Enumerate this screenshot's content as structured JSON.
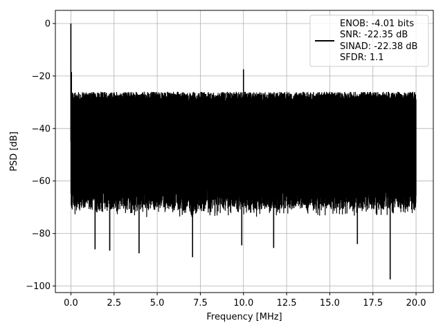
{
  "chart_data": {
    "type": "line",
    "title": "",
    "xlabel": "Frequency [MHz]",
    "ylabel": "PSD [dB]",
    "xlim": [
      -0.9,
      21.0
    ],
    "ylim": [
      -102.5,
      5.0
    ],
    "x_ticks": [
      0.0,
      2.5,
      5.0,
      7.5,
      10.0,
      12.5,
      15.0,
      17.5,
      20.0
    ],
    "x_tick_labels": [
      "0.0",
      "2.5",
      "5.0",
      "7.5",
      "10.0",
      "12.5",
      "15.0",
      "17.5",
      "20.0"
    ],
    "y_ticks": [
      0,
      -20,
      -40,
      -60,
      -80,
      -100
    ],
    "y_tick_labels": [
      "0",
      "−20",
      "−40",
      "−60",
      "−80",
      "−100"
    ],
    "grid": true,
    "legend": {
      "placement": "upper-right",
      "entries": [
        "ENOB: -4.01 bits",
        "SNR: -22.35 dB",
        "SINAD: -22.38 dB",
        "SFDR: 1.1"
      ]
    },
    "series": [
      {
        "color": "#000000",
        "x_range": [
          0.0,
          20.0
        ],
        "noise_floor": {
          "typical_upper_db": -27.5,
          "typical_lower_db": -66.0,
          "peak_upper_db": -24.0,
          "deepest_dip_db": -97.5
        },
        "spikes": [
          {
            "x": 0.0,
            "y": 0.0
          },
          {
            "x": 0.03,
            "y": -18.5
          },
          {
            "x": 10.0,
            "y": -17.5
          }
        ],
        "dips": [
          {
            "x": 1.4,
            "y": -86.0
          },
          {
            "x": 2.25,
            "y": -86.5
          },
          {
            "x": 3.95,
            "y": -87.5
          },
          {
            "x": 7.05,
            "y": -89.0
          },
          {
            "x": 9.9,
            "y": -84.5
          },
          {
            "x": 11.75,
            "y": -85.5
          },
          {
            "x": 16.6,
            "y": -84.0
          },
          {
            "x": 18.5,
            "y": -97.5
          }
        ]
      }
    ]
  }
}
